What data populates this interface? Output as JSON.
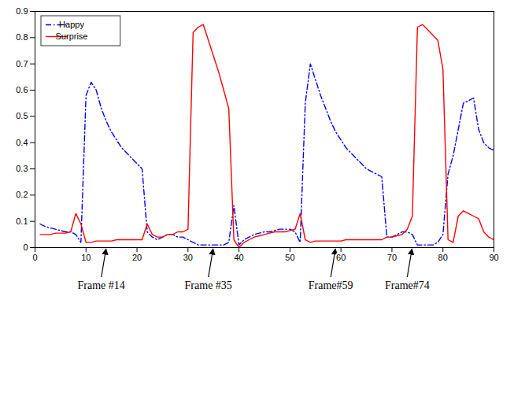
{
  "chart_data": {
    "type": "line",
    "x": [
      1,
      2,
      3,
      4,
      5,
      6,
      7,
      8,
      9,
      10,
      11,
      12,
      13,
      14,
      15,
      16,
      17,
      18,
      19,
      20,
      21,
      22,
      23,
      24,
      25,
      26,
      27,
      28,
      29,
      30,
      31,
      32,
      33,
      34,
      35,
      36,
      37,
      38,
      39,
      40,
      41,
      42,
      43,
      44,
      45,
      46,
      47,
      48,
      49,
      50,
      51,
      52,
      53,
      54,
      55,
      56,
      57,
      58,
      59,
      60,
      61,
      62,
      63,
      64,
      65,
      66,
      67,
      68,
      69,
      70,
      71,
      72,
      73,
      74,
      75,
      76,
      77,
      78,
      79,
      80,
      81,
      82,
      83,
      84,
      85,
      86,
      87,
      88,
      89,
      90
    ],
    "series": [
      {
        "name": "Happy",
        "color": "#0000ff",
        "line_style": "dashdot",
        "values": [
          0.09,
          0.08,
          0.075,
          0.07,
          0.065,
          0.06,
          0.06,
          0.05,
          0.02,
          0.58,
          0.63,
          0.6,
          0.53,
          0.48,
          0.44,
          0.41,
          0.38,
          0.36,
          0.34,
          0.32,
          0.3,
          0.06,
          0.04,
          0.03,
          0.04,
          0.05,
          0.05,
          0.04,
          0.04,
          0.03,
          0.02,
          0.01,
          0.01,
          0.01,
          0.01,
          0.01,
          0.01,
          0.02,
          0.16,
          0.01,
          0.03,
          0.04,
          0.05,
          0.055,
          0.06,
          0.06,
          0.065,
          0.07,
          0.07,
          0.07,
          0.06,
          0.02,
          0.55,
          0.7,
          0.64,
          0.58,
          0.53,
          0.48,
          0.44,
          0.41,
          0.38,
          0.36,
          0.34,
          0.32,
          0.3,
          0.29,
          0.28,
          0.27,
          0.04,
          0.04,
          0.05,
          0.06,
          0.06,
          0.05,
          0.01,
          0.01,
          0.01,
          0.01,
          0.02,
          0.05,
          0.28,
          0.35,
          0.45,
          0.55,
          0.56,
          0.57,
          0.45,
          0.4,
          0.38,
          0.37
        ]
      },
      {
        "name": "Surprise",
        "color": "#ff0000",
        "line_style": "solid",
        "values": [
          0.05,
          0.05,
          0.05,
          0.055,
          0.055,
          0.055,
          0.06,
          0.13,
          0.09,
          0.02,
          0.02,
          0.025,
          0.025,
          0.025,
          0.025,
          0.03,
          0.03,
          0.03,
          0.03,
          0.03,
          0.03,
          0.09,
          0.05,
          0.04,
          0.04,
          0.05,
          0.05,
          0.06,
          0.06,
          0.07,
          0.82,
          0.84,
          0.85,
          0.79,
          0.73,
          0.67,
          0.6,
          0.53,
          0.03,
          0.0,
          0.02,
          0.03,
          0.04,
          0.045,
          0.05,
          0.055,
          0.06,
          0.06,
          0.06,
          0.065,
          0.07,
          0.13,
          0.03,
          0.02,
          0.025,
          0.025,
          0.025,
          0.025,
          0.025,
          0.025,
          0.03,
          0.03,
          0.03,
          0.03,
          0.03,
          0.03,
          0.03,
          0.03,
          0.04,
          0.04,
          0.045,
          0.05,
          0.07,
          0.12,
          0.84,
          0.85,
          0.83,
          0.81,
          0.79,
          0.68,
          0.03,
          0.02,
          0.12,
          0.14,
          0.13,
          0.12,
          0.11,
          0.06,
          0.04,
          0.03
        ]
      }
    ],
    "xlim": [
      0,
      90
    ],
    "ylim": [
      0,
      0.9
    ],
    "xticks": [
      0,
      10,
      20,
      30,
      40,
      50,
      60,
      70,
      80,
      90
    ],
    "yticks": [
      0,
      0.1,
      0.2,
      0.3,
      0.4,
      0.5,
      0.6,
      0.7,
      0.8,
      0.9
    ],
    "legend": "top-left",
    "annotations": [
      {
        "text": "Frame #14",
        "x": 14
      },
      {
        "text": "Frame #35",
        "x": 35
      },
      {
        "text": "Frame#59",
        "x": 59
      },
      {
        "text": "Frame#74",
        "x": 74
      }
    ]
  }
}
